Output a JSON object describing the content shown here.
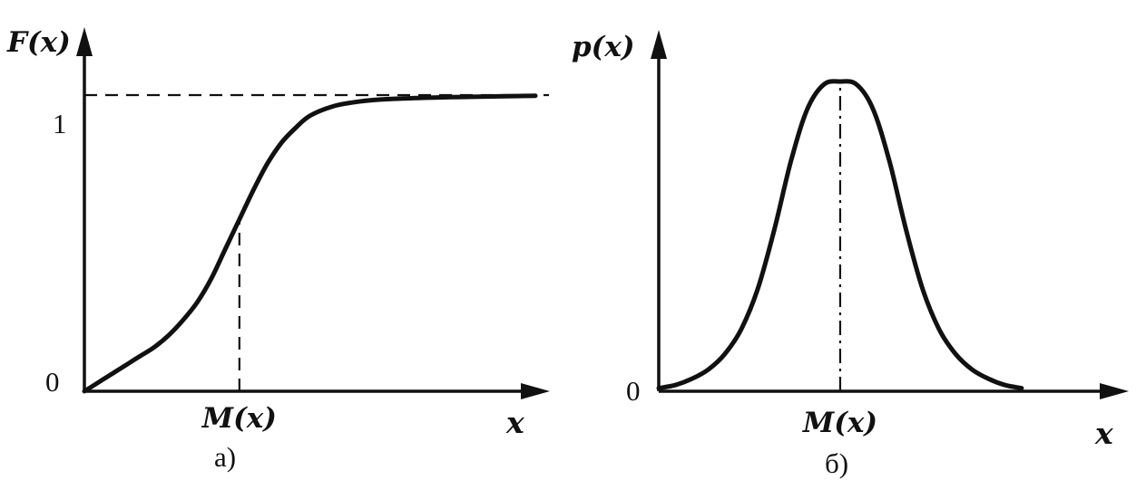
{
  "chart_data": [
    {
      "type": "line",
      "panel_label": "а)",
      "ylabel": "F(x)",
      "xlabel": "x",
      "y_tick_labels": [
        "0",
        "1"
      ],
      "x_tick_labels": [
        "M(x)"
      ],
      "reference_line": {
        "y": 1,
        "style": "dashed"
      },
      "marker_line": {
        "x": 0,
        "label": "M(x)",
        "style": "dashed"
      },
      "xlim": [
        -2.2,
        4.2
      ],
      "ylim": [
        0,
        1.1
      ],
      "series": [
        {
          "x": [
            -2.2,
            -2.0,
            -1.8,
            -1.6,
            -1.4,
            -1.2,
            -1.0,
            -0.8,
            -0.6,
            -0.4,
            -0.2,
            0.0,
            0.2,
            0.4,
            0.6,
            0.8,
            1.0,
            1.3,
            1.6,
            2.0,
            2.5,
            3.0,
            3.5,
            4.0,
            4.2
          ],
          "y": [
            0.0,
            0.03,
            0.06,
            0.09,
            0.12,
            0.15,
            0.19,
            0.24,
            0.3,
            0.38,
            0.48,
            0.58,
            0.68,
            0.77,
            0.84,
            0.89,
            0.93,
            0.96,
            0.975,
            0.985,
            0.99,
            0.993,
            0.995,
            0.997,
            0.998
          ]
        }
      ],
      "grid": false,
      "legend": "none"
    },
    {
      "type": "line",
      "panel_label": "б)",
      "ylabel": "p(x)",
      "xlabel": "x",
      "y_tick_labels": [
        "0"
      ],
      "x_tick_labels": [
        "M(x)"
      ],
      "marker_line": {
        "x": 0,
        "label": "M(x)",
        "style": "dash-dot"
      },
      "xlim": [
        -2.2,
        2.3
      ],
      "ylim": [
        0,
        1.2
      ],
      "series": [
        {
          "x": [
            -2.2,
            -2.0,
            -1.8,
            -1.6,
            -1.4,
            -1.2,
            -1.0,
            -0.8,
            -0.6,
            -0.4,
            -0.2,
            0.0,
            0.2,
            0.4,
            0.6,
            0.8,
            1.0,
            1.2,
            1.4,
            1.6,
            1.8,
            2.0,
            2.2
          ],
          "y": [
            0.01,
            0.02,
            0.04,
            0.07,
            0.12,
            0.2,
            0.33,
            0.52,
            0.74,
            0.91,
            0.99,
            1.0,
            0.99,
            0.91,
            0.74,
            0.52,
            0.33,
            0.2,
            0.12,
            0.07,
            0.04,
            0.02,
            0.01
          ]
        }
      ],
      "grid": false,
      "legend": "none"
    }
  ]
}
